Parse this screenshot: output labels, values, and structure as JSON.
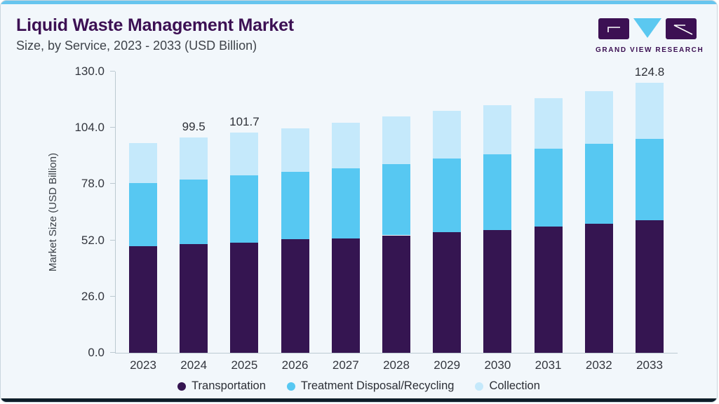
{
  "header": {
    "title": "Liquid Waste Management Market",
    "subtitle": "Size, by Service, 2023 - 2033 (USD Billion)"
  },
  "logo": {
    "name": "GRAND VIEW RESEARCH"
  },
  "chart_data": {
    "type": "bar",
    "stacked": true,
    "title": "Liquid Waste Management Market Size, by Service, 2023 - 2033 (USD Billion)",
    "categories": [
      "2023",
      "2024",
      "2025",
      "2026",
      "2027",
      "2028",
      "2029",
      "2030",
      "2031",
      "2032",
      "2033"
    ],
    "series": [
      {
        "name": "Transportation",
        "color": "#351551",
        "values": [
          49.3,
          50.2,
          51.0,
          52.4,
          53.0,
          54.3,
          55.8,
          56.8,
          58.5,
          59.8,
          61.4
        ]
      },
      {
        "name": "Treatment Disposal/Recycling",
        "color": "#57c8f2",
        "values": [
          29.2,
          30.0,
          31.0,
          31.4,
          32.2,
          33.0,
          34.0,
          34.9,
          35.8,
          36.8,
          37.6
        ]
      },
      {
        "name": "Collection",
        "color": "#c5e9fb",
        "values": [
          18.4,
          19.3,
          19.7,
          20.1,
          21.2,
          21.9,
          21.9,
          22.7,
          23.5,
          24.4,
          25.8
        ]
      }
    ],
    "totals": [
      96.9,
      99.5,
      101.7,
      103.9,
      106.4,
      109.2,
      111.7,
      114.4,
      117.8,
      121.0,
      124.8
    ],
    "bar_labels": [
      "",
      "99.5",
      "101.7",
      "",
      "",
      "",
      "",
      "",
      "",
      "",
      "124.8"
    ],
    "ylabel": "Market Size (USD Billion)",
    "yticks": [
      0,
      26,
      52,
      78,
      104,
      130
    ],
    "ytick_labels": [
      "0.0",
      "26.0",
      "52.0",
      "78.0",
      "104.0",
      "130.0"
    ],
    "ylim": [
      0,
      130
    ],
    "grid": false,
    "legend_position": "bottom"
  },
  "colors": {
    "accent_top": "#67c5ee",
    "accent_bottom": "#0d1d29",
    "title_purple": "#3c1053",
    "card_background": "#f2f7fb",
    "axis": "#bcc9d1"
  }
}
